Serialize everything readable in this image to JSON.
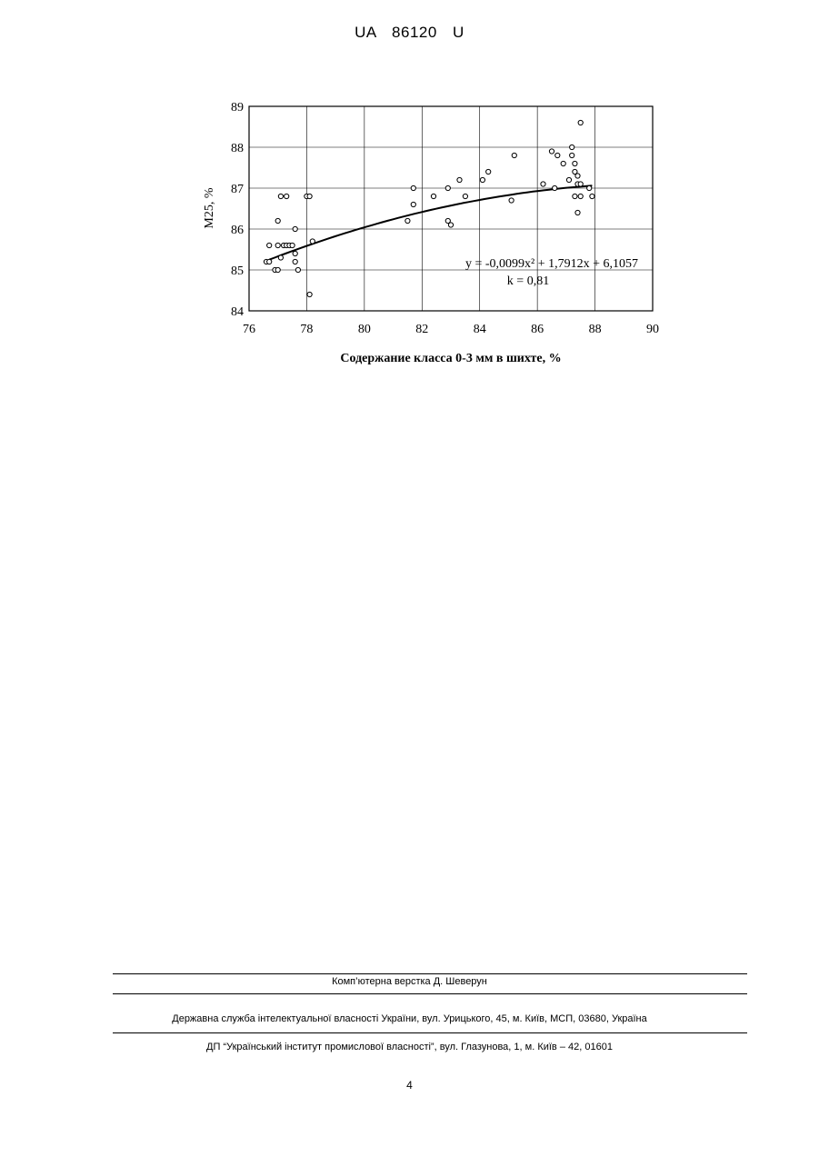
{
  "header": {
    "title": "UA   86120   U"
  },
  "chart_data": {
    "type": "scatter",
    "xlabel": "Содержание класса 0-3 мм в шихте, %",
    "ylabel": "M25, %",
    "xlim": [
      76,
      90
    ],
    "ylim": [
      84,
      89
    ],
    "xticks": [
      "76",
      "78",
      "80",
      "82",
      "84",
      "86",
      "88",
      "90"
    ],
    "yticks": [
      "84",
      "85",
      "86",
      "87",
      "88",
      "89"
    ],
    "grid": true,
    "equation_text": "y = -0,0099x² + 1,7912x + 6,1057",
    "k_text": "k = 0,81",
    "trendline": {
      "a": -0.0099,
      "b": 1.7912,
      "c": 6.1057,
      "x_range": [
        76.7,
        87.9
      ]
    },
    "points": [
      [
        76.6,
        85.2
      ],
      [
        76.7,
        85.2
      ],
      [
        76.7,
        85.6
      ],
      [
        76.9,
        85.0
      ],
      [
        77.0,
        85.0
      ],
      [
        77.0,
        86.2
      ],
      [
        77.0,
        85.6
      ],
      [
        77.1,
        86.8
      ],
      [
        77.1,
        85.3
      ],
      [
        77.2,
        85.6
      ],
      [
        77.3,
        86.8
      ],
      [
        77.3,
        85.6
      ],
      [
        77.4,
        85.6
      ],
      [
        77.5,
        85.6
      ],
      [
        77.6,
        86.0
      ],
      [
        77.6,
        85.4
      ],
      [
        77.6,
        85.2
      ],
      [
        77.7,
        85.0
      ],
      [
        78.0,
        86.8
      ],
      [
        78.1,
        86.8
      ],
      [
        78.1,
        84.4
      ],
      [
        78.2,
        85.7
      ],
      [
        81.5,
        86.2
      ],
      [
        81.7,
        87.0
      ],
      [
        81.7,
        86.6
      ],
      [
        82.4,
        86.8
      ],
      [
        82.9,
        87.0
      ],
      [
        82.9,
        86.2
      ],
      [
        83.0,
        86.1
      ],
      [
        83.3,
        87.2
      ],
      [
        83.5,
        86.8
      ],
      [
        84.1,
        87.2
      ],
      [
        84.3,
        87.4
      ],
      [
        85.1,
        86.7
      ],
      [
        85.2,
        87.8
      ],
      [
        86.2,
        87.1
      ],
      [
        86.5,
        87.9
      ],
      [
        86.6,
        87.0
      ],
      [
        86.7,
        87.8
      ],
      [
        86.9,
        87.6
      ],
      [
        87.1,
        87.2
      ],
      [
        87.2,
        87.8
      ],
      [
        87.2,
        88.0
      ],
      [
        87.3,
        87.6
      ],
      [
        87.3,
        86.8
      ],
      [
        87.3,
        87.4
      ],
      [
        87.4,
        87.1
      ],
      [
        87.4,
        86.4
      ],
      [
        87.4,
        87.3
      ],
      [
        87.5,
        88.6
      ],
      [
        87.5,
        87.1
      ],
      [
        87.5,
        86.8
      ],
      [
        87.8,
        87.0
      ],
      [
        87.9,
        86.8
      ]
    ]
  },
  "footer": {
    "layout_credit": "Комп’ютерна верстка Д. Шеверун",
    "service_address": "Державна служба інтелектуальної власності України, вул. Урицького, 45, м. Київ, МСП, 03680, Україна",
    "institute_address": "ДП “Український інститут промислової власності”, вул. Глазунова, 1, м. Київ – 42, 01601",
    "page_number": "4"
  }
}
